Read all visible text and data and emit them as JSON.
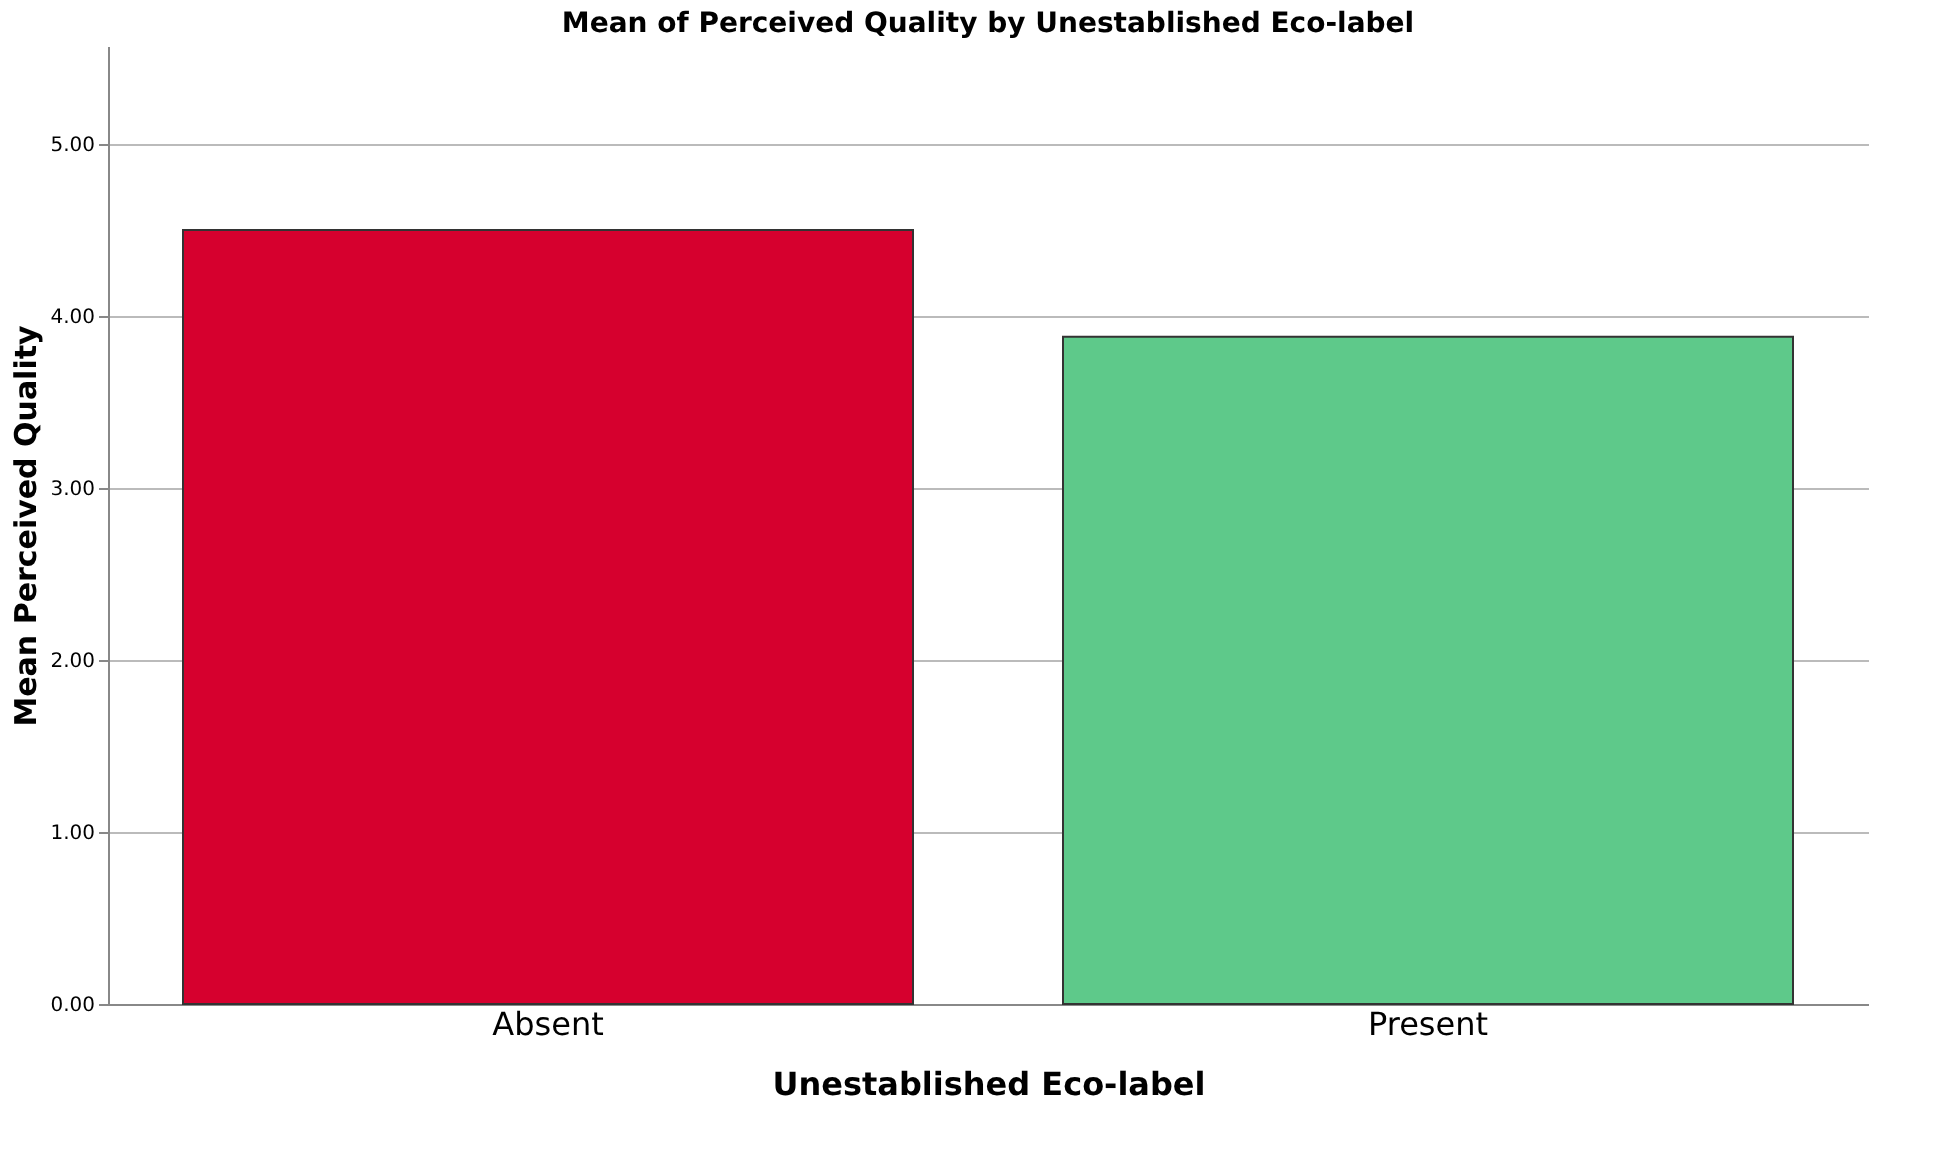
{
  "chart_data": {
    "type": "bar",
    "title": "Mean of Perceived Quality by Unestablished Eco-label",
    "xlabel": "Unestablished Eco-label",
    "ylabel": "Mean Perceived Quality",
    "categories": [
      "Absent",
      "Present"
    ],
    "values": [
      4.5,
      3.88
    ],
    "colors": [
      "#d6002e",
      "#5ec98a"
    ],
    "ylim": [
      0,
      5.57
    ],
    "yticks": [
      {
        "value": 0,
        "label": "0.00"
      },
      {
        "value": 1,
        "label": "1.00"
      },
      {
        "value": 2,
        "label": "2.00"
      },
      {
        "value": 3,
        "label": "3.00"
      },
      {
        "value": 4,
        "label": "4.00"
      },
      {
        "value": 5,
        "label": "5.00"
      }
    ],
    "grid": "y",
    "legend": false
  }
}
